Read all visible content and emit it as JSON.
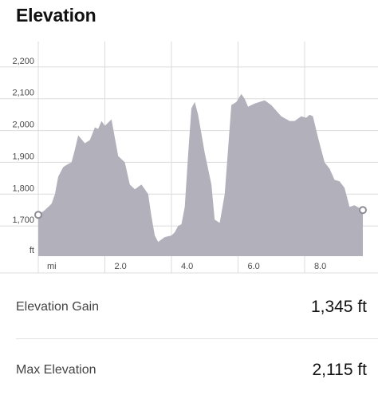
{
  "header": {
    "title": "Elevation"
  },
  "chart_data": {
    "type": "area",
    "x_unit_label": "mi",
    "y_unit_label": "ft",
    "x_ticks": [
      "2.0",
      "4.0",
      "6.0",
      "8.0"
    ],
    "x_tick_values": [
      2,
      4,
      6,
      8
    ],
    "y_ticks": [
      "1,700",
      "1,800",
      "1,900",
      "2,000",
      "2,100",
      "2,200"
    ],
    "y_tick_values": [
      1700,
      1800,
      1900,
      2000,
      2100,
      2200
    ],
    "xlim": [
      0,
      9.75
    ],
    "ylim": [
      1605,
      2280
    ],
    "grid": true,
    "fill_color": "#b1b0bb",
    "series": [
      {
        "x": [
          0,
          0.2,
          0.4,
          0.5,
          0.6,
          0.75,
          0.9,
          1.0,
          1.1,
          1.2,
          1.4,
          1.55,
          1.7,
          1.8,
          1.9,
          2.0,
          2.2,
          2.4,
          2.6,
          2.75,
          2.9,
          3.1,
          3.3,
          3.4,
          3.5,
          3.6,
          3.8,
          4.0,
          4.1,
          4.2,
          4.3,
          4.4,
          4.5,
          4.6,
          4.7,
          4.8,
          5.0,
          5.1,
          5.2,
          5.3,
          5.45,
          5.6,
          5.8,
          5.95,
          6.1,
          6.2,
          6.3,
          6.5,
          6.8,
          7.0,
          7.3,
          7.55,
          7.7,
          7.9,
          8.05,
          8.15,
          8.25,
          8.4,
          8.6,
          8.75,
          8.9,
          9.05,
          9.2,
          9.35,
          9.5,
          9.75
        ],
        "y": [
          1735,
          1750,
          1770,
          1800,
          1855,
          1885,
          1895,
          1900,
          1940,
          1985,
          1960,
          1970,
          2010,
          2005,
          2030,
          2015,
          2035,
          1920,
          1900,
          1830,
          1815,
          1830,
          1800,
          1730,
          1670,
          1650,
          1665,
          1670,
          1680,
          1700,
          1705,
          1760,
          1920,
          2070,
          2090,
          2050,
          1930,
          1880,
          1830,
          1720,
          1710,
          1800,
          2080,
          2090,
          2115,
          2100,
          2075,
          2085,
          2095,
          2080,
          2045,
          2030,
          2030,
          2045,
          2040,
          2050,
          2045,
          1980,
          1900,
          1880,
          1845,
          1840,
          1820,
          1760,
          1765,
          1750
        ]
      }
    ]
  },
  "stats": [
    {
      "label": "Elevation Gain",
      "value": "1,345 ft"
    },
    {
      "label": "Max Elevation",
      "value": "2,115 ft"
    }
  ]
}
